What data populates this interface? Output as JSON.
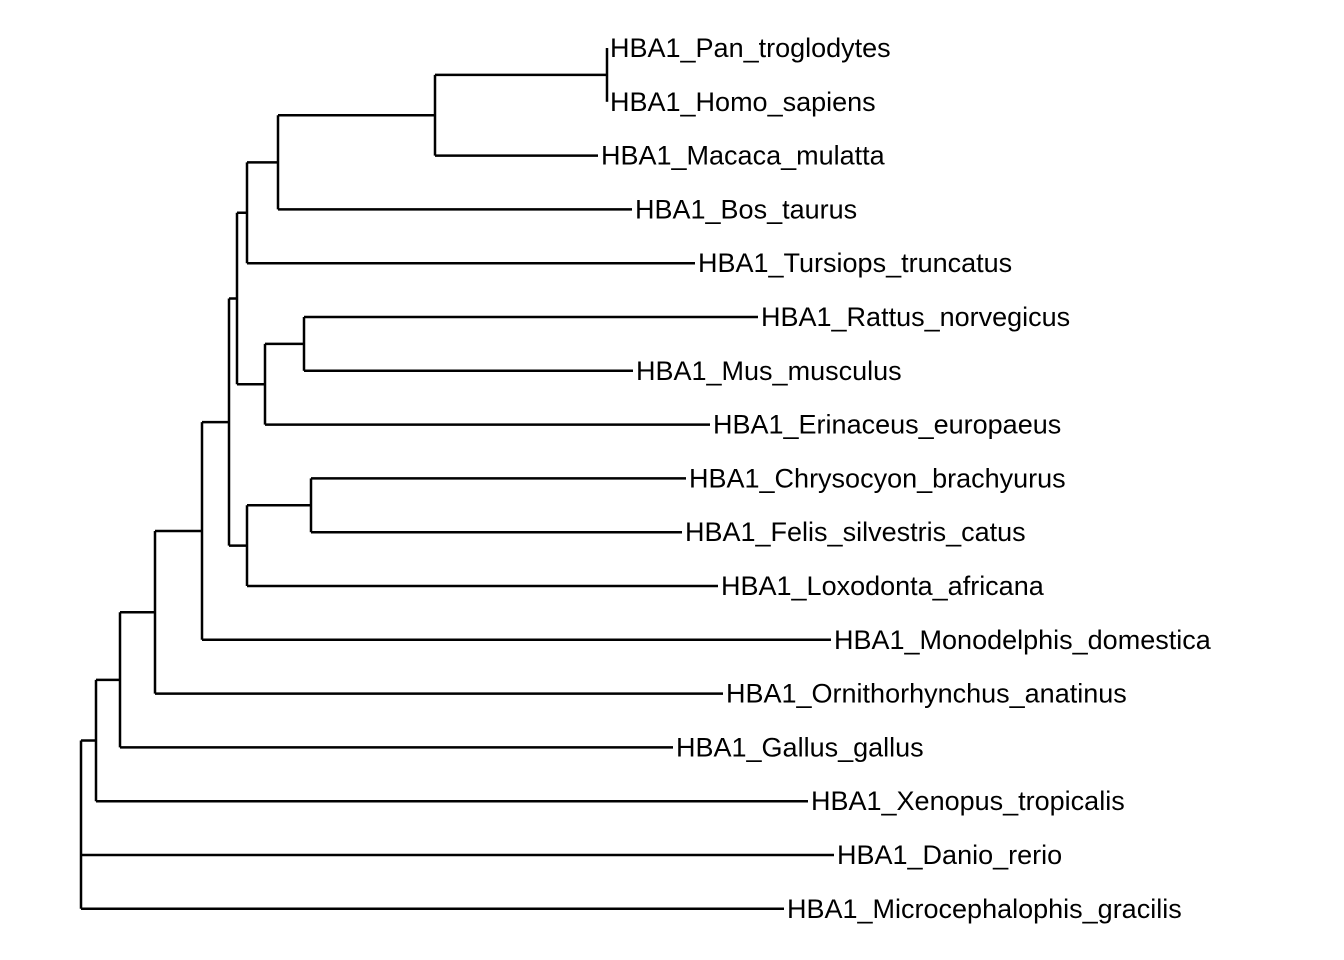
{
  "tree": {
    "line_color": "#000000",
    "tips": [
      "HBA1_Pan_troglodytes",
      "HBA1_Homo_sapiens",
      "HBA1_Macaca_mulatta",
      "HBA1_Bos_taurus",
      "HBA1_Tursiops_truncatus",
      "HBA1_Rattus_norvegicus",
      "HBA1_Mus_musculus",
      "HBA1_Erinaceus_europaeus",
      "HBA1_Chrysocyon_brachyurus",
      "HBA1_Felis_silvestris_catus",
      "HBA1_Loxodonta_africana",
      "HBA1_Monodelphis_domestica",
      "HBA1_Ornithorhynchus_anatinus",
      "HBA1_Gallus_gallus",
      "HBA1_Xenopus_tropicalis",
      "HBA1_Danio_rerio",
      "HBA1_Microcephalophis_gracilis"
    ]
  }
}
